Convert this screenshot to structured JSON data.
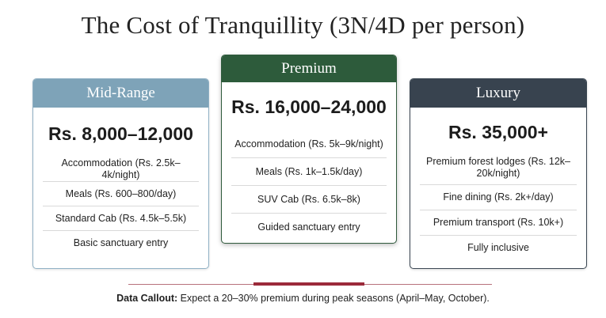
{
  "title": "The Cost of Tranquillity (3N/4D per person)",
  "colors": {
    "mid_header": "#7ea3b8",
    "premium_header": "#2d5b3b",
    "luxury_header": "#38434f",
    "callout_rule": "#9b2a3a"
  },
  "tiers": {
    "mid": {
      "name": "Mid-Range",
      "price": "Rs. 8,000–12,000",
      "items": [
        "Accommodation (Rs. 2.5k–4k/night)",
        "Meals (Rs. 600–800/day)",
        "Standard Cab (Rs. 4.5k–5.5k)",
        "Basic sanctuary entry"
      ]
    },
    "premium": {
      "name": "Premium",
      "price": "Rs. 16,000–24,000",
      "items": [
        "Accommodation (Rs. 5k–9k/night)",
        "Meals (Rs. 1k–1.5k/day)",
        "SUV Cab (Rs. 6.5k–8k)",
        "Guided sanctuary entry"
      ]
    },
    "luxury": {
      "name": "Luxury",
      "price": "Rs. 35,000+",
      "items": [
        "Premium forest lodges (Rs. 12k–20k/night)",
        "Fine dining (Rs. 2k+/day)",
        "Premium transport (Rs. 10k+)",
        "Fully inclusive"
      ]
    }
  },
  "callout": {
    "label": "Data Callout:",
    "text": " Expect a 20–30% premium during peak seasons (April–May, October)."
  }
}
